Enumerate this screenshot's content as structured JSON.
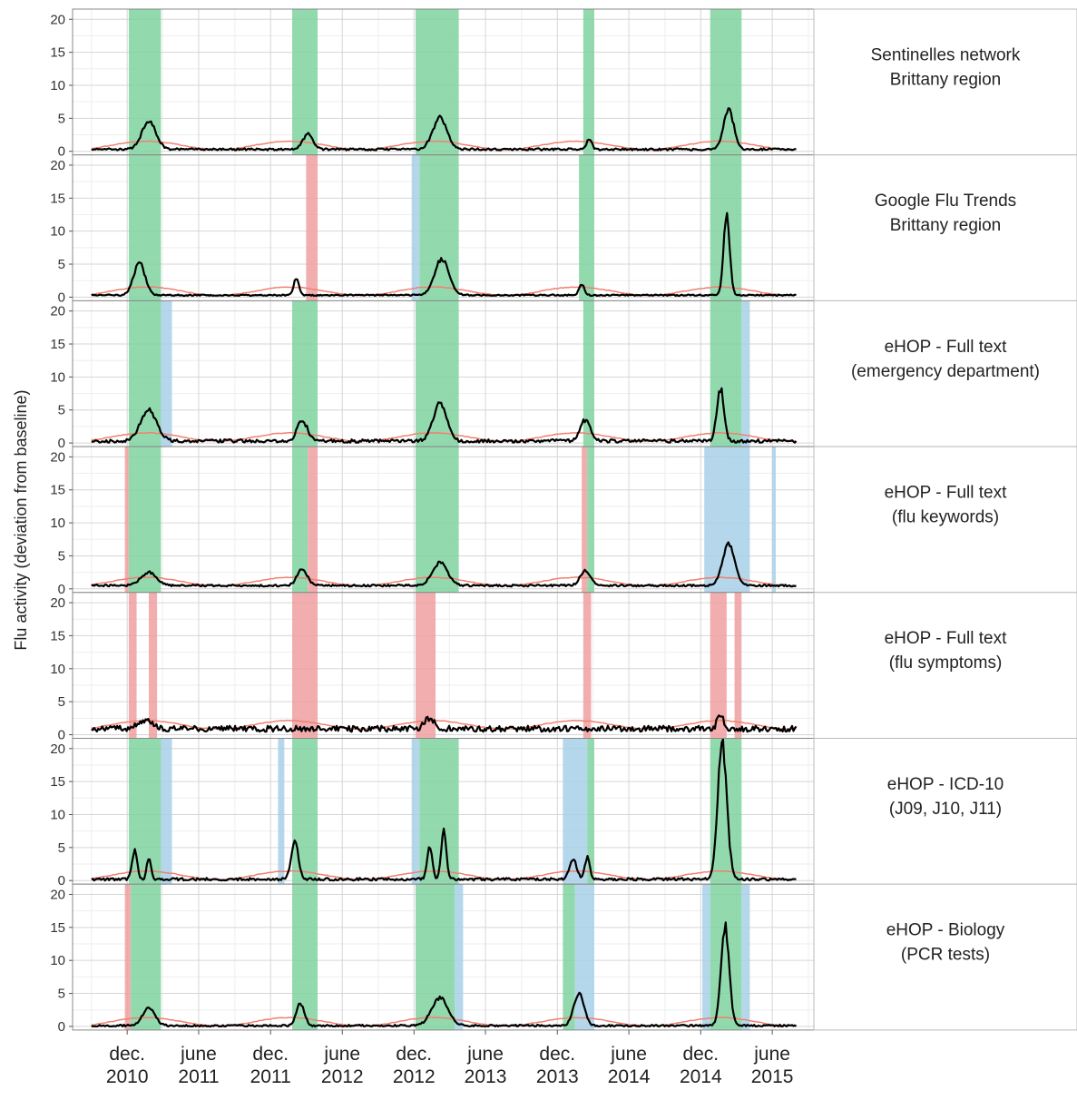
{
  "chart_data": {
    "type": "line",
    "ylabel": "Flu activity (deviation from baseline)",
    "xlabel": "",
    "ylim": [
      0,
      21
    ],
    "yticks": [
      0,
      5,
      10,
      15,
      20
    ],
    "xlim": [
      "2010-07-15",
      "2015-09-15"
    ],
    "x_ticks": [
      {
        "date": "2010-12-01",
        "line1": "dec.",
        "line2": "2010"
      },
      {
        "date": "2011-06-01",
        "line1": "june",
        "line2": "2011"
      },
      {
        "date": "2011-12-01",
        "line1": "dec.",
        "line2": "2011"
      },
      {
        "date": "2012-06-01",
        "line1": "june",
        "line2": "2012"
      },
      {
        "date": "2012-12-01",
        "line1": "dec.",
        "line2": "2012"
      },
      {
        "date": "2013-06-01",
        "line1": "june",
        "line2": "2013"
      },
      {
        "date": "2013-12-01",
        "line1": "dec.",
        "line2": "2013"
      },
      {
        "date": "2014-06-01",
        "line1": "june",
        "line2": "2014"
      },
      {
        "date": "2014-12-01",
        "line1": "dec.",
        "line2": "2014"
      },
      {
        "date": "2015-06-01",
        "line1": "june",
        "line2": "2015"
      }
    ],
    "grid": true,
    "colors": {
      "line": "#000000",
      "baseline": "#f08070",
      "green_band": "#7fd3a0",
      "red_band": "#f0a0a0",
      "blue_band": "#a8d0e8",
      "panel_bg": "#ffffff",
      "grid_major": "#d6d6d6",
      "grid_minor": "#eeeeee",
      "strip_bg": "#ffffff"
    },
    "panels": [
      {
        "label_line1": "Sentinelles network",
        "label_line2": "Brittany region",
        "bands": [
          {
            "start": "2010-12-05",
            "end": "2011-02-25",
            "color": "green"
          },
          {
            "start": "2012-01-25",
            "end": "2012-03-30",
            "color": "green"
          },
          {
            "start": "2012-12-05",
            "end": "2013-03-25",
            "color": "green"
          },
          {
            "start": "2014-02-05",
            "end": "2014-03-05",
            "color": "green"
          },
          {
            "start": "2014-12-25",
            "end": "2015-03-15",
            "color": "green"
          }
        ],
        "peaks": [
          {
            "date": "2011-01-25",
            "value": 4.2,
            "width": 0.14
          },
          {
            "date": "2012-03-05",
            "value": 2.3,
            "width": 0.1
          },
          {
            "date": "2013-02-05",
            "value": 4.8,
            "width": 0.14
          },
          {
            "date": "2014-02-20",
            "value": 1.6,
            "width": 0.05
          },
          {
            "date": "2015-02-10",
            "value": 6.0,
            "width": 0.1
          }
        ],
        "noise": 0.15,
        "level": 0.3
      },
      {
        "label_line1": "Google Flu Trends",
        "label_line2": "Brittany region",
        "bands": [
          {
            "start": "2010-12-05",
            "end": "2011-02-25",
            "color": "green"
          },
          {
            "start": "2012-03-01",
            "end": "2012-03-30",
            "color": "red"
          },
          {
            "start": "2012-11-25",
            "end": "2012-12-15",
            "color": "blue"
          },
          {
            "start": "2012-12-15",
            "end": "2013-03-25",
            "color": "green"
          },
          {
            "start": "2014-01-25",
            "end": "2014-03-05",
            "color": "green"
          },
          {
            "start": "2014-12-25",
            "end": "2015-03-15",
            "color": "green"
          }
        ],
        "peaks": [
          {
            "date": "2011-01-01",
            "value": 5.0,
            "width": 0.11
          },
          {
            "date": "2012-02-05",
            "value": 2.6,
            "width": 0.05
          },
          {
            "date": "2013-02-10",
            "value": 5.5,
            "width": 0.14
          },
          {
            "date": "2014-02-01",
            "value": 1.7,
            "width": 0.05
          },
          {
            "date": "2015-02-05",
            "value": 12.0,
            "width": 0.06
          }
        ],
        "noise": 0.1,
        "level": 0.3
      },
      {
        "label_line1": "eHOP - Full text",
        "label_line2": "(emergency department)",
        "bands": [
          {
            "start": "2010-12-05",
            "end": "2011-02-25",
            "color": "green"
          },
          {
            "start": "2011-02-25",
            "end": "2011-03-25",
            "color": "blue"
          },
          {
            "start": "2012-01-25",
            "end": "2012-03-30",
            "color": "green"
          },
          {
            "start": "2012-12-05",
            "end": "2013-03-25",
            "color": "green"
          },
          {
            "start": "2014-02-05",
            "end": "2014-03-05",
            "color": "green"
          },
          {
            "start": "2014-12-25",
            "end": "2015-03-15",
            "color": "green"
          },
          {
            "start": "2015-03-15",
            "end": "2015-04-05",
            "color": "blue"
          }
        ],
        "peaks": [
          {
            "date": "2011-01-25",
            "value": 4.6,
            "width": 0.16
          },
          {
            "date": "2012-02-20",
            "value": 3.2,
            "width": 0.1
          },
          {
            "date": "2013-02-05",
            "value": 5.8,
            "width": 0.13
          },
          {
            "date": "2014-02-10",
            "value": 3.2,
            "width": 0.1
          },
          {
            "date": "2015-01-20",
            "value": 8.0,
            "width": 0.07
          }
        ],
        "noise": 0.25,
        "level": 0.3
      },
      {
        "label_line1": "eHOP - Full text",
        "label_line2": "(flu keywords)",
        "bands": [
          {
            "start": "2010-11-25",
            "end": "2010-12-05",
            "color": "red"
          },
          {
            "start": "2010-12-05",
            "end": "2011-02-25",
            "color": "green"
          },
          {
            "start": "2012-01-25",
            "end": "2012-03-05",
            "color": "green"
          },
          {
            "start": "2012-03-05",
            "end": "2012-03-30",
            "color": "red"
          },
          {
            "start": "2012-12-05",
            "end": "2013-03-25",
            "color": "green"
          },
          {
            "start": "2014-02-01",
            "end": "2014-02-15",
            "color": "red"
          },
          {
            "start": "2014-02-15",
            "end": "2014-03-05",
            "color": "green"
          },
          {
            "start": "2014-12-10",
            "end": "2015-04-05",
            "color": "blue"
          },
          {
            "start": "2015-06-01",
            "end": "2015-06-10",
            "color": "blue"
          }
        ],
        "peaks": [
          {
            "date": "2011-01-25",
            "value": 2.0,
            "width": 0.15
          },
          {
            "date": "2012-02-20",
            "value": 2.5,
            "width": 0.1
          },
          {
            "date": "2013-02-05",
            "value": 3.4,
            "width": 0.15
          },
          {
            "date": "2014-02-10",
            "value": 2.2,
            "width": 0.1
          },
          {
            "date": "2015-02-10",
            "value": 6.2,
            "width": 0.12
          }
        ],
        "noise": 0.15,
        "level": 0.5
      },
      {
        "label_line1": "eHOP - Full text",
        "label_line2": "(flu symptoms)",
        "bands": [
          {
            "start": "2010-12-05",
            "end": "2010-12-25",
            "color": "red"
          },
          {
            "start": "2011-01-25",
            "end": "2011-02-15",
            "color": "red"
          },
          {
            "start": "2012-01-25",
            "end": "2012-03-30",
            "color": "red"
          },
          {
            "start": "2012-12-05",
            "end": "2013-01-25",
            "color": "red"
          },
          {
            "start": "2014-02-05",
            "end": "2014-02-25",
            "color": "red"
          },
          {
            "start": "2014-12-25",
            "end": "2015-02-05",
            "color": "red"
          },
          {
            "start": "2015-02-25",
            "end": "2015-03-15",
            "color": "red"
          }
        ],
        "peaks": [
          {
            "date": "2011-01-15",
            "value": 1.2,
            "width": 0.15
          },
          {
            "date": "2013-01-10",
            "value": 1.6,
            "width": 0.1
          },
          {
            "date": "2015-01-20",
            "value": 2.2,
            "width": 0.06
          }
        ],
        "noise": 0.45,
        "level": 0.9
      },
      {
        "label_line1": "eHOP - ICD-10",
        "label_line2": "(J09, J10, J11)",
        "bands": [
          {
            "start": "2010-12-05",
            "end": "2011-02-25",
            "color": "green"
          },
          {
            "start": "2011-02-25",
            "end": "2011-03-25",
            "color": "blue"
          },
          {
            "start": "2011-12-20",
            "end": "2012-01-05",
            "color": "blue"
          },
          {
            "start": "2012-01-25",
            "end": "2012-03-30",
            "color": "green"
          },
          {
            "start": "2012-11-25",
            "end": "2012-12-15",
            "color": "blue"
          },
          {
            "start": "2012-12-15",
            "end": "2013-03-25",
            "color": "green"
          },
          {
            "start": "2013-12-15",
            "end": "2014-02-15",
            "color": "blue"
          },
          {
            "start": "2014-02-15",
            "end": "2014-03-05",
            "color": "green"
          },
          {
            "start": "2014-12-25",
            "end": "2015-03-15",
            "color": "green"
          }
        ],
        "peaks": [
          {
            "date": "2010-12-20",
            "value": 4.5,
            "width": 0.05
          },
          {
            "date": "2011-01-25",
            "value": 3.2,
            "width": 0.04
          },
          {
            "date": "2012-02-01",
            "value": 5.8,
            "width": 0.07
          },
          {
            "date": "2013-01-10",
            "value": 4.8,
            "width": 0.05
          },
          {
            "date": "2013-02-15",
            "value": 7.5,
            "width": 0.05
          },
          {
            "date": "2014-01-10",
            "value": 3.0,
            "width": 0.07
          },
          {
            "date": "2014-02-15",
            "value": 3.2,
            "width": 0.05
          },
          {
            "date": "2015-01-25",
            "value": 20.5,
            "width": 0.09
          }
        ],
        "noise": 0.2,
        "level": 0.2
      },
      {
        "label_line1": "eHOP - Biology",
        "label_line2": "(PCR tests)",
        "bands": [
          {
            "start": "2010-11-25",
            "end": "2010-12-10",
            "color": "red"
          },
          {
            "start": "2010-12-10",
            "end": "2011-02-25",
            "color": "green"
          },
          {
            "start": "2012-01-25",
            "end": "2012-03-30",
            "color": "green"
          },
          {
            "start": "2012-12-05",
            "end": "2013-03-15",
            "color": "green"
          },
          {
            "start": "2013-03-15",
            "end": "2013-04-05",
            "color": "blue"
          },
          {
            "start": "2013-12-15",
            "end": "2014-01-15",
            "color": "green"
          },
          {
            "start": "2014-01-15",
            "end": "2014-03-05",
            "color": "blue"
          },
          {
            "start": "2014-12-05",
            "end": "2014-12-25",
            "color": "blue"
          },
          {
            "start": "2014-12-25",
            "end": "2015-03-15",
            "color": "green"
          },
          {
            "start": "2015-03-15",
            "end": "2015-04-05",
            "color": "blue"
          }
        ],
        "peaks": [
          {
            "date": "2011-01-25",
            "value": 2.8,
            "width": 0.12
          },
          {
            "date": "2012-02-15",
            "value": 3.4,
            "width": 0.08
          },
          {
            "date": "2013-02-05",
            "value": 4.2,
            "width": 0.16
          },
          {
            "date": "2014-01-25",
            "value": 5.0,
            "width": 0.1
          },
          {
            "date": "2015-02-01",
            "value": 15.0,
            "width": 0.08
          }
        ],
        "noise": 0.15,
        "level": 0.1
      }
    ]
  }
}
